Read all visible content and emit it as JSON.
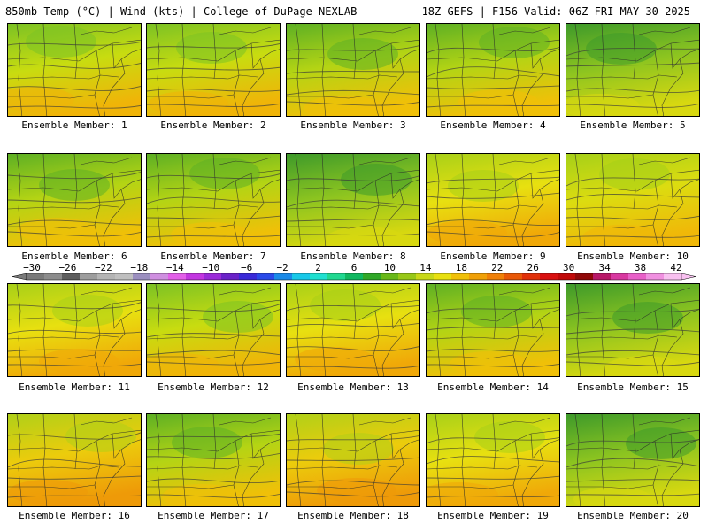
{
  "header": {
    "left": "850mb Temp (°C) | Wind (kts) | College of DuPage NEXLAB",
    "right": "18Z GEFS | F156 Valid: 06Z FRI MAY 30 2025"
  },
  "members": [
    {
      "label": "Ensemble Member: 1",
      "tint": "warm-north-green"
    },
    {
      "label": "Ensemble Member: 2",
      "tint": "warm-north-green"
    },
    {
      "label": "Ensemble Member: 3",
      "tint": "green-north"
    },
    {
      "label": "Ensemble Member: 4",
      "tint": "green-north"
    },
    {
      "label": "Ensemble Member: 5",
      "tint": "cool-green"
    },
    {
      "label": "Ensemble Member: 6",
      "tint": "green-north"
    },
    {
      "label": "Ensemble Member: 7",
      "tint": "green-north"
    },
    {
      "label": "Ensemble Member: 8",
      "tint": "cool-green"
    },
    {
      "label": "Ensemble Member: 9",
      "tint": "warm-yellow"
    },
    {
      "label": "Ensemble Member: 10",
      "tint": "green-east"
    },
    {
      "label": "Ensemble Member: 11",
      "tint": "warm-yellow"
    },
    {
      "label": "Ensemble Member: 12",
      "tint": "warm-north-green"
    },
    {
      "label": "Ensemble Member: 13",
      "tint": "warm-yellow"
    },
    {
      "label": "Ensemble Member: 14",
      "tint": "green-north"
    },
    {
      "label": "Ensemble Member: 15",
      "tint": "cool-green"
    },
    {
      "label": "Ensemble Member: 16",
      "tint": "warm-orange"
    },
    {
      "label": "Ensemble Member: 17",
      "tint": "green-north"
    },
    {
      "label": "Ensemble Member: 18",
      "tint": "warm-orange"
    },
    {
      "label": "Ensemble Member: 19",
      "tint": "warm-yellow"
    },
    {
      "label": "Ensemble Member: 20",
      "tint": "cool-green"
    }
  ],
  "colorbar": {
    "labels": [
      "-30",
      "-26",
      "-22",
      "-18",
      "-14",
      "-10",
      "-6",
      "-2",
      "2",
      "6",
      "10",
      "14",
      "18",
      "22",
      "26",
      "30",
      "34",
      "38",
      "42"
    ],
    "colors": [
      "#7a7a7a",
      "#8c8c8c",
      "#5e5e5e",
      "#9d9d9d",
      "#b4b4b4",
      "#bfbfbf",
      "#9b8fbf",
      "#cf8fe0",
      "#e25fe8",
      "#c236e0",
      "#9a2ad8",
      "#6a22c8",
      "#3a2ad8",
      "#2a4ae8",
      "#1a8ae8",
      "#18c8e8",
      "#20e0d0",
      "#20d890",
      "#10b860",
      "#30a828",
      "#68b818",
      "#98c818",
      "#c8d818",
      "#e8e010",
      "#f0c008",
      "#f0a008",
      "#f08008",
      "#e85808",
      "#e03008",
      "#d81010",
      "#c00808",
      "#900808",
      "#b81868",
      "#d838a0",
      "#e860c8",
      "#f090e0",
      "#f8c0f0"
    ]
  }
}
